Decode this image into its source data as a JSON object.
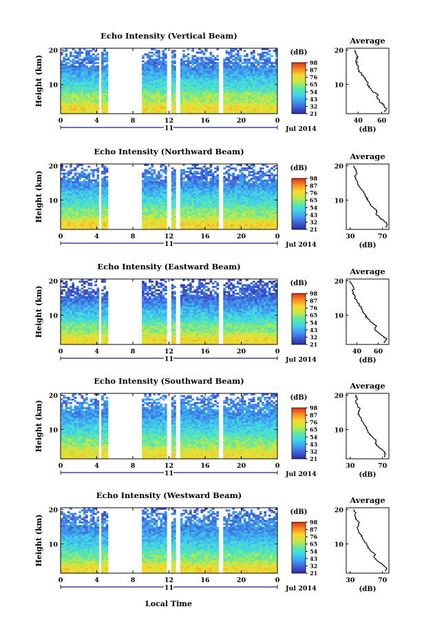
{
  "figure": {
    "x_axis_label": "Local Time",
    "date_label": "Jul 2014",
    "day_label": "11"
  },
  "chart_data": [
    {
      "type": "heatmap",
      "title": "Echo Intensity (Vertical Beam)",
      "xlabel": "",
      "ylabel": "Height (km)",
      "xticks": [
        "0",
        "4",
        "8",
        "12",
        "16",
        "20",
        "0"
      ],
      "xlim": [
        0,
        24
      ],
      "yticks": [
        "20",
        "10"
      ],
      "ylim": [
        1.5,
        20.5
      ],
      "colorbar": {
        "unit": "(dB)",
        "ticks": [
          "98",
          "87",
          "76",
          "65",
          "54",
          "43",
          "32",
          "21"
        ],
        "range": [
          21,
          98
        ]
      },
      "data_gaps_hours": [
        [
          4.2,
          4.6
        ],
        [
          5.3,
          8.9
        ],
        [
          11.7,
          12.2
        ],
        [
          12.8,
          13.2
        ],
        [
          17.6,
          18.1
        ]
      ],
      "average_profile": {
        "title": "Average",
        "xlabel": "(dB)",
        "xticks": [
          "40",
          "60"
        ],
        "xlim": [
          30,
          66
        ],
        "yticks": [
          "20",
          "10"
        ],
        "height_km": [
          2,
          3,
          4,
          5,
          6,
          7,
          8,
          9,
          10,
          11,
          12,
          13,
          14,
          15,
          16,
          17,
          18,
          19,
          20
        ],
        "value_db": [
          62,
          64,
          62,
          58,
          56,
          57,
          52,
          50,
          48,
          47,
          45,
          43,
          41,
          40,
          39,
          38,
          40,
          38,
          37
        ]
      }
    },
    {
      "type": "heatmap",
      "title": "Echo Intensity (Northward Beam)",
      "xlabel": "",
      "ylabel": "Height (km)",
      "xticks": [
        "0",
        "4",
        "8",
        "12",
        "16",
        "20",
        "0"
      ],
      "xlim": [
        0,
        24
      ],
      "yticks": [
        "20",
        "10"
      ],
      "ylim": [
        1.5,
        20.5
      ],
      "colorbar": {
        "unit": "(dB)",
        "ticks": [
          "98",
          "87",
          "76",
          "65",
          "54",
          "43",
          "32",
          "21"
        ],
        "range": [
          21,
          98
        ]
      },
      "data_gaps_hours": [
        [
          4.2,
          4.6
        ],
        [
          5.3,
          8.9
        ],
        [
          11.7,
          12.2
        ],
        [
          12.8,
          13.2
        ],
        [
          17.6,
          18.1
        ]
      ],
      "average_profile": {
        "title": "Average",
        "xlabel": "(dB)",
        "xticks": [
          "30",
          "70"
        ],
        "xlim": [
          25,
          78
        ],
        "yticks": [
          "20",
          "10"
        ],
        "height_km": [
          2,
          3,
          4,
          5,
          6,
          7,
          8,
          9,
          10,
          11,
          12,
          13,
          14,
          15,
          16,
          17,
          18,
          19,
          20
        ],
        "value_db": [
          74,
          76,
          72,
          66,
          62,
          63,
          58,
          54,
          52,
          50,
          47,
          44,
          41,
          39,
          37,
          36,
          38,
          36,
          34
        ]
      }
    },
    {
      "type": "heatmap",
      "title": "Echo Intensity (Eastward Beam)",
      "xlabel": "",
      "ylabel": "Height (km)",
      "xticks": [
        "0",
        "4",
        "8",
        "12",
        "16",
        "20",
        "0"
      ],
      "xlim": [
        0,
        24
      ],
      "yticks": [
        "20",
        "10"
      ],
      "ylim": [
        1.5,
        20.5
      ],
      "colorbar": {
        "unit": "(dB)",
        "ticks": [
          "98",
          "87",
          "76",
          "65",
          "54",
          "43",
          "32",
          "21"
        ],
        "range": [
          21,
          98
        ]
      },
      "data_gaps_hours": [
        [
          4.2,
          4.6
        ],
        [
          5.3,
          8.9
        ],
        [
          11.7,
          12.2
        ],
        [
          12.8,
          13.2
        ],
        [
          17.6,
          18.1
        ]
      ],
      "average_profile": {
        "title": "Average",
        "xlabel": "(dB)",
        "xticks": [
          "40",
          "60"
        ],
        "xlim": [
          30,
          70
        ],
        "yticks": [
          "20",
          "10"
        ],
        "height_km": [
          2,
          3,
          4,
          5,
          6,
          7,
          8,
          9,
          10,
          11,
          12,
          13,
          14,
          15,
          16,
          17,
          18,
          19,
          20
        ],
        "value_db": [
          66,
          68,
          64,
          60,
          57,
          58,
          53,
          50,
          48,
          46,
          44,
          42,
          40,
          38,
          37,
          36,
          37,
          35,
          34
        ]
      }
    },
    {
      "type": "heatmap",
      "title": "Echo Intensity (Southward Beam)",
      "xlabel": "",
      "ylabel": "Height (km)",
      "xticks": [
        "0",
        "4",
        "8",
        "12",
        "16",
        "20",
        "0"
      ],
      "xlim": [
        0,
        24
      ],
      "yticks": [
        "20",
        "10"
      ],
      "ylim": [
        1.5,
        20.5
      ],
      "colorbar": {
        "unit": "(dB)",
        "ticks": [
          "98",
          "87",
          "76",
          "65",
          "54",
          "43",
          "32",
          "21"
        ],
        "range": [
          21,
          98
        ]
      },
      "data_gaps_hours": [
        [
          4.2,
          4.6
        ],
        [
          5.3,
          8.9
        ],
        [
          11.7,
          12.2
        ],
        [
          12.8,
          13.2
        ],
        [
          17.6,
          18.1
        ]
      ],
      "average_profile": {
        "title": "Average",
        "xlabel": "(dB)",
        "xticks": [
          "30",
          "70"
        ],
        "xlim": [
          25,
          78
        ],
        "yticks": [
          "20",
          "10"
        ],
        "height_km": [
          2,
          3,
          4,
          5,
          6,
          7,
          8,
          9,
          10,
          11,
          12,
          13,
          14,
          15,
          16,
          17,
          18,
          19,
          20
        ],
        "value_db": [
          72,
          74,
          70,
          65,
          61,
          62,
          57,
          53,
          51,
          49,
          46,
          44,
          41,
          40,
          42,
          39,
          37,
          39,
          36
        ]
      }
    },
    {
      "type": "heatmap",
      "title": "Echo Intensity (Westward Beam)",
      "xlabel": "",
      "ylabel": "Height (km)",
      "xticks": [
        "0",
        "4",
        "8",
        "12",
        "16",
        "20",
        "0"
      ],
      "xlim": [
        0,
        24
      ],
      "yticks": [
        "20",
        "10"
      ],
      "ylim": [
        1.5,
        20.5
      ],
      "colorbar": {
        "unit": "(dB)",
        "ticks": [
          "98",
          "87",
          "76",
          "65",
          "54",
          "43",
          "32",
          "21"
        ],
        "range": [
          21,
          98
        ]
      },
      "data_gaps_hours": [
        [
          4.2,
          4.6
        ],
        [
          5.3,
          8.9
        ],
        [
          11.7,
          12.2
        ],
        [
          12.8,
          13.2
        ],
        [
          17.6,
          18.1
        ]
      ],
      "average_profile": {
        "title": "Average",
        "xlabel": "(dB)",
        "xticks": [
          "30",
          "70"
        ],
        "xlim": [
          25,
          78
        ],
        "yticks": [
          "20",
          "10"
        ],
        "height_km": [
          2,
          3,
          4,
          5,
          6,
          7,
          8,
          9,
          10,
          11,
          12,
          13,
          14,
          15,
          16,
          17,
          18,
          19,
          20
        ],
        "value_db": [
          74,
          75,
          70,
          64,
          60,
          61,
          55,
          52,
          50,
          47,
          45,
          42,
          40,
          39,
          41,
          38,
          36,
          37,
          34
        ]
      }
    }
  ],
  "colors": {
    "colormap": [
      "#2a2ea0",
      "#3f5fd8",
      "#3fa0f0",
      "#40d8e8",
      "#60e8a0",
      "#c8e840",
      "#f8d830",
      "#f88a20",
      "#e03018"
    ],
    "axis": "#000000",
    "day_line": "#1c1c80"
  }
}
